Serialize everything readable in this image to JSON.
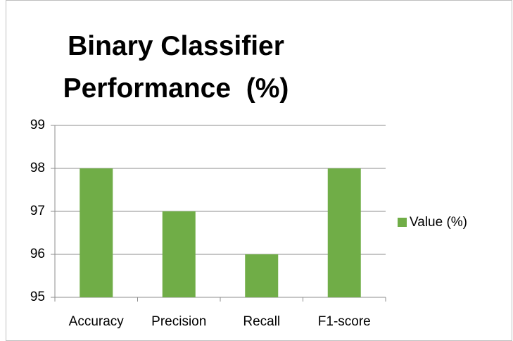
{
  "chart_data": {
    "type": "bar",
    "title": "Binary Classifier Performance  (%)",
    "categories": [
      "Accuracy",
      "Precision",
      "Recall",
      "F1-score"
    ],
    "series": [
      {
        "name": "Value (%)",
        "color": "#70ad47",
        "values": [
          98,
          97,
          96,
          98
        ]
      }
    ],
    "ylim": [
      95,
      99
    ],
    "yticks": [
      95,
      96,
      97,
      98,
      99
    ],
    "grid": true,
    "legend": "right"
  }
}
